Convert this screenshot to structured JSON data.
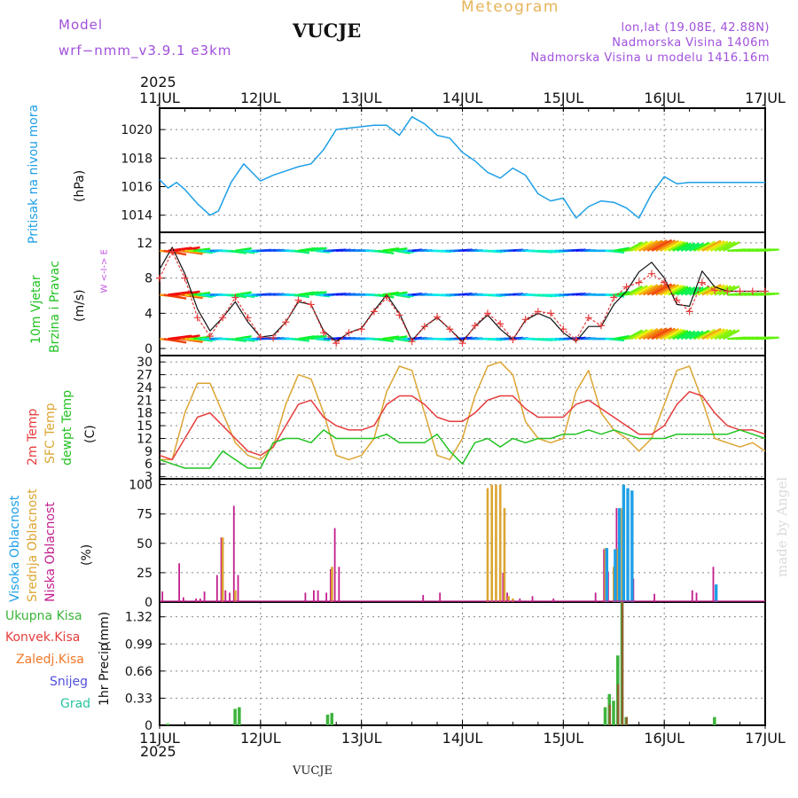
{
  "header": {
    "model_label": "Model",
    "model_name": "wrf−nmm_v3.9.1  e3km",
    "station": "VUCJE",
    "title": "Meteogram",
    "lonlat": "lon,lat (19.08E, 42.88N)",
    "elevation": "Nadmorska Visina 1406m",
    "model_elevation": "Nadmorska Visina u modelu 1416.16m",
    "year_top": "2025",
    "year_bottom": "2025",
    "footer_station": "VUCJE",
    "credit": "made by Angel"
  },
  "colors": {
    "pressure": "#1ea0e6",
    "wind_title": "#22c322",
    "temp_2m": "#e63c3c",
    "temp_sfc": "#dca532",
    "dewpt": "#22c322",
    "cloud_high": "#1ea0e6",
    "cloud_mid": "#dca532",
    "cloud_low": "#c31e8c",
    "precip_total": "#3cb43c",
    "precip_conv": "#e63c3c",
    "precip_frozen": "#f07828",
    "precip_snow": "#5050dc",
    "precip_hail": "#28c3a0",
    "header_purple": "#a050dc",
    "title_orange": "#e6b45a"
  },
  "chart_data": [
    {
      "type": "line",
      "panel": "pressure",
      "ylabel_title": "Pritisak na nivou mora",
      "yunit": "(hPa)",
      "x_days": [
        "11JUL",
        "12JUL",
        "13JUL",
        "14JUL",
        "15JUL",
        "16JUL",
        "17JUL"
      ],
      "ylim": [
        1012.8,
        1021.5
      ],
      "yticks": [
        "1014",
        "1016",
        "1018",
        "1020"
      ],
      "x_hours": [
        0,
        2,
        4,
        6,
        9,
        12,
        14,
        17,
        20,
        24,
        27,
        30,
        33,
        36,
        39,
        42,
        45,
        48,
        51,
        54,
        57,
        60,
        63,
        66,
        69,
        72,
        75,
        78,
        81,
        84,
        87,
        90,
        93,
        96,
        99,
        102,
        105,
        108,
        111,
        114,
        117,
        120,
        123,
        126,
        129,
        132,
        135,
        138,
        141,
        144
      ],
      "values": [
        1016.5,
        1015.9,
        1016.3,
        1015.8,
        1014.8,
        1014.0,
        1014.3,
        1016.3,
        1017.6,
        1016.4,
        1016.8,
        1017.1,
        1017.4,
        1017.6,
        1018.6,
        1020.0,
        1020.1,
        1020.2,
        1020.3,
        1020.3,
        1019.6,
        1020.9,
        1020.4,
        1019.6,
        1019.4,
        1018.4,
        1017.8,
        1017.0,
        1016.6,
        1017.3,
        1016.8,
        1015.5,
        1015.0,
        1015.2,
        1013.8,
        1014.6,
        1015.0,
        1014.9,
        1014.5,
        1013.8,
        1015.5,
        1016.7,
        1016.2,
        1016.3,
        1016.3,
        1016.3,
        1016.3,
        1016.3,
        1016.3,
        1016.3
      ]
    },
    {
      "type": "line",
      "panel": "wind",
      "ylabel_title": "10m Vjetar",
      "ylabel_sub": "Brzina i Pravac",
      "yunit": "(m/s)",
      "compass": "W <-I-> E",
      "ylim": [
        -0.8,
        13.2
      ],
      "yticks": [
        "0",
        "4",
        "8",
        "12"
      ],
      "band_levels": [
        1.1,
        6.1,
        11.1
      ],
      "x_hours": [
        0,
        3,
        6,
        9,
        12,
        15,
        18,
        21,
        24,
        27,
        30,
        33,
        36,
        39,
        42,
        45,
        48,
        51,
        54,
        57,
        60,
        63,
        66,
        69,
        72,
        75,
        78,
        81,
        84,
        87,
        90,
        93,
        96,
        99,
        102,
        105,
        108,
        111,
        114,
        117,
        120,
        123,
        126,
        129,
        132,
        135,
        138,
        141,
        144
      ],
      "speed": [
        9.0,
        11.5,
        8.5,
        4.5,
        2.0,
        3.5,
        5.3,
        3.0,
        1.3,
        1.5,
        3.0,
        5.3,
        5.0,
        2.0,
        0.8,
        1.8,
        2.3,
        4.3,
        6.1,
        4.0,
        0.9,
        2.5,
        3.5,
        2.2,
        0.8,
        2.5,
        3.8,
        2.2,
        1.0,
        3.2,
        4.0,
        3.4,
        1.8,
        0.8,
        2.5,
        2.5,
        5.0,
        6.5,
        8.7,
        9.8,
        8.0,
        5.0,
        4.8,
        8.8,
        7.0,
        6.5,
        6.5,
        6.5,
        6.5
      ],
      "gust": [
        8.0,
        11.0,
        8.0,
        3.5,
        1.4,
        3.5,
        5.8,
        3.5,
        1.3,
        1.2,
        3.0,
        5.5,
        5.0,
        1.8,
        0.6,
        1.8,
        2.2,
        4.2,
        5.8,
        3.8,
        0.8,
        2.5,
        3.6,
        2.2,
        0.6,
        2.6,
        4.0,
        2.8,
        1.0,
        3.3,
        4.2,
        4.0,
        2.2,
        1.0,
        3.5,
        2.6,
        5.8,
        7.0,
        7.5,
        8.5,
        7.5,
        5.5,
        4.2,
        7.5,
        6.6,
        6.5,
        6.5,
        6.5,
        6.5
      ]
    },
    {
      "type": "line",
      "panel": "temperature",
      "ylabel_title": "2m Temp",
      "ylabel_sfc": "SFC Temp",
      "ylabel_dew": "dewpt Temp",
      "yunit": "(C)",
      "ylim": [
        2.5,
        31.5
      ],
      "yticks": [
        "3",
        "6",
        "9",
        "12",
        "15",
        "18",
        "21",
        "24",
        "27",
        "30"
      ],
      "x_hours": [
        0,
        3,
        6,
        9,
        12,
        15,
        18,
        21,
        24,
        27,
        30,
        33,
        36,
        39,
        42,
        45,
        48,
        51,
        54,
        57,
        60,
        63,
        66,
        69,
        72,
        75,
        78,
        81,
        84,
        87,
        90,
        93,
        96,
        99,
        102,
        105,
        108,
        111,
        114,
        117,
        120,
        123,
        126,
        129,
        132,
        135,
        138,
        141,
        144
      ],
      "t2m": [
        8,
        7,
        12,
        17,
        18,
        15,
        12,
        9,
        8,
        10,
        15,
        20,
        21,
        17,
        15,
        14,
        14,
        15,
        20,
        22,
        22,
        20,
        17,
        16,
        16,
        18,
        21,
        22,
        22,
        19,
        17,
        17,
        17,
        20,
        21,
        19,
        17,
        15,
        13,
        13,
        15,
        20,
        23,
        22,
        18,
        15,
        14,
        14,
        13
      ],
      "sfc": [
        7,
        7,
        18,
        25,
        25,
        18,
        11,
        8,
        7,
        10,
        20,
        27,
        26,
        18,
        8,
        7,
        8,
        12,
        23,
        29,
        28,
        18,
        8,
        7,
        12,
        22,
        29,
        30,
        27,
        16,
        12,
        11,
        12,
        23,
        28,
        18,
        14,
        12,
        9,
        12,
        20,
        28,
        29,
        21,
        12,
        11,
        10,
        11,
        9
      ],
      "dew": [
        7,
        6,
        5,
        5,
        5,
        9,
        7,
        5,
        5,
        11,
        12,
        12,
        11,
        14,
        12,
        12,
        12,
        12,
        13,
        11,
        11,
        11,
        13,
        9,
        6,
        11,
        12,
        10,
        12,
        11,
        12,
        12,
        13,
        13,
        14,
        13,
        14,
        13,
        12,
        12,
        12,
        13,
        13,
        13,
        13,
        13,
        14,
        13,
        12
      ]
    },
    {
      "type": "bar",
      "panel": "clouds",
      "ylabel_high": "Visoka Oblacnost",
      "ylabel_mid": "Srednja Oblacnost",
      "ylabel_low": "Niska Oblacnost",
      "yunit": "(%)",
      "ylim": [
        0,
        105
      ],
      "yticks": [
        "0",
        "25",
        "50",
        "75",
        "100"
      ],
      "series": [
        {
          "name": "Niska Oblacnost",
          "bars": [
            [
              1,
              9
            ],
            [
              5,
              33
            ],
            [
              6,
              4
            ],
            [
              9,
              3
            ],
            [
              10,
              3
            ],
            [
              11,
              9
            ],
            [
              14,
              23
            ],
            [
              15,
              55
            ],
            [
              16,
              10
            ],
            [
              17,
              8
            ],
            [
              18,
              82
            ],
            [
              19,
              23
            ],
            [
              35,
              8
            ],
            [
              37,
              10
            ],
            [
              38,
              10
            ],
            [
              40,
              8
            ],
            [
              41,
              28
            ],
            [
              42,
              63
            ],
            [
              43,
              30
            ],
            [
              63,
              6
            ],
            [
              67,
              8
            ],
            [
              82,
              25
            ],
            [
              83,
              8
            ],
            [
              86,
              3
            ],
            [
              89,
              5
            ],
            [
              94,
              3
            ],
            [
              104,
              8
            ],
            [
              106,
              45
            ],
            [
              107,
              26
            ],
            [
              109,
              80
            ],
            [
              113,
              20
            ],
            [
              118,
              7
            ],
            [
              127,
              10
            ],
            [
              128,
              8
            ],
            [
              132,
              30
            ]
          ]
        },
        {
          "name": "Srednja Oblacnost",
          "bars": [
            [
              15,
              55
            ],
            [
              18,
              10
            ],
            [
              41,
              30
            ],
            [
              78,
              97
            ],
            [
              79,
              100
            ],
            [
              80,
              100
            ],
            [
              81,
              100
            ],
            [
              82,
              80
            ],
            [
              83,
              5
            ],
            [
              84,
              3
            ],
            [
              106,
              46
            ],
            [
              108,
              30
            ],
            [
              109,
              46
            ],
            [
              110,
              80
            ]
          ]
        },
        {
          "name": "Visoka Oblacnost",
          "bars": [
            [
              106,
              46
            ],
            [
              108,
              45
            ],
            [
              109,
              80
            ],
            [
              110,
              100
            ],
            [
              111,
              97
            ],
            [
              112,
              95
            ],
            [
              132,
              15
            ]
          ]
        }
      ]
    },
    {
      "type": "bar",
      "panel": "precipitation",
      "ylabel_title": "1hr Precip",
      "yunit": "(mm)",
      "ylim": [
        0,
        1.5
      ],
      "yticks": [
        "0",
        "0.33",
        "0.66",
        "0.99",
        "1.32"
      ],
      "legend": [
        "Ukupna Kisa",
        "Konvek.Kisa",
        "Zaledj.Kisa",
        "Snijeg",
        "Grad"
      ],
      "total": [
        [
          2,
          0.02
        ],
        [
          18,
          0.2
        ],
        [
          19,
          0.22
        ],
        [
          40,
          0.13
        ],
        [
          41,
          0.15
        ],
        [
          106,
          0.22
        ],
        [
          107,
          0.38
        ],
        [
          108,
          0.3
        ],
        [
          109,
          0.85
        ],
        [
          110,
          1.5
        ],
        [
          111,
          0.1
        ],
        [
          132,
          0.1
        ]
      ],
      "convective": [
        [
          107,
          0.25
        ],
        [
          109,
          0.5
        ],
        [
          110,
          1.5
        ],
        [
          111,
          0.1
        ]
      ]
    }
  ]
}
